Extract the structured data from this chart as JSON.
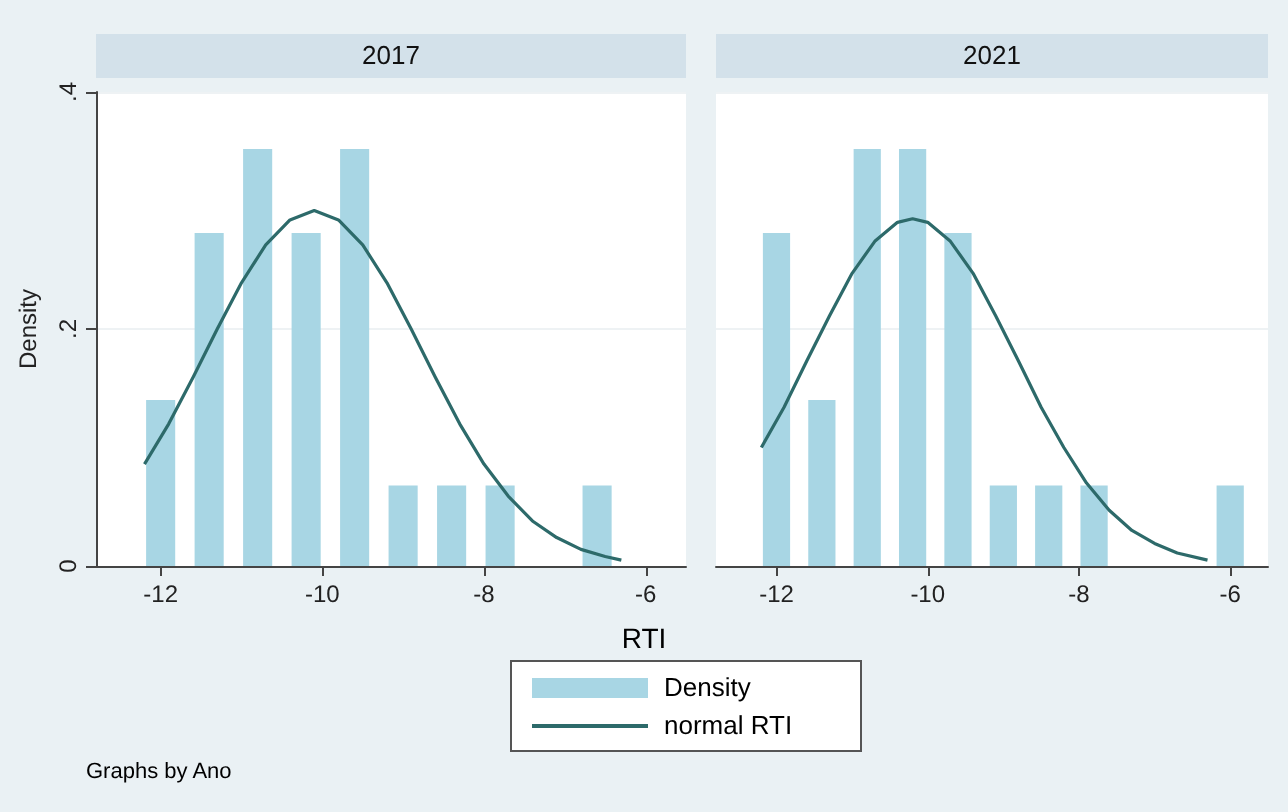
{
  "chart_data": [
    {
      "type": "histogram",
      "title": "2017",
      "xlabel": "RTI",
      "ylabel": "Density",
      "legend": "bottom",
      "grid": "y",
      "annotations": [
        "Graphs by Ano"
      ],
      "bins": [
        -12.3,
        -11.7,
        -11.1,
        -10.5,
        -9.9,
        -9.3,
        -8.7,
        -8.1,
        -7.5,
        -6.9,
        -6.3
      ],
      "xlim": [
        -12.8,
        -5.5
      ],
      "xticks": [
        -12,
        -10,
        -8,
        -6
      ],
      "ylim": [
        0,
        0.4
      ],
      "yticks": [
        0,
        {
          "value": 0.2,
          "label": ".2"
        },
        {
          "value": 0.4,
          "label": ".4"
        }
      ],
      "series": [
        {
          "name": "Density",
          "color": "#a8d6e4",
          "values": [
            0.14,
            0.281,
            0.352,
            0.281,
            0.352,
            0.068,
            0.068,
            0.068,
            0,
            0.068
          ]
        },
        {
          "type": "line",
          "name": "normal RTI",
          "color": "#2d6a6a",
          "x": [
            -12.2,
            -11.9,
            -11.6,
            -11.3,
            -11.0,
            -10.7,
            -10.4,
            -10.1,
            -9.8,
            -9.5,
            -9.2,
            -8.9,
            -8.6,
            -8.3,
            -8.0,
            -7.7,
            -7.4,
            -7.1,
            -6.8,
            -6.5,
            -6.3
          ],
          "values": [
            0.086,
            0.12,
            0.159,
            0.2,
            0.239,
            0.271,
            0.292,
            0.3,
            0.292,
            0.271,
            0.239,
            0.2,
            0.159,
            0.12,
            0.086,
            0.059,
            0.038,
            0.024,
            0.014,
            0.008,
            0.005
          ]
        }
      ]
    },
    {
      "type": "histogram",
      "title": "2021",
      "grid": "y",
      "tick_labels": "x",
      "bins": [
        -12.3,
        -11.7,
        -11.1,
        -10.5,
        -9.9,
        -9.3,
        -8.7,
        -8.1,
        -7.5,
        -6.9,
        -6.3,
        -5.7
      ],
      "xlim": [
        -12.8,
        -5.5
      ],
      "xticks": [
        -12,
        -10,
        -8,
        -6
      ],
      "ylim": [
        0,
        0.4
      ],
      "yticks": [
        {
          "value": 0,
          "label": null
        },
        {
          "value": 0.2,
          "label": null
        },
        {
          "value": 0.4,
          "label": null
        }
      ],
      "series": [
        {
          "color": "#a8d6e4",
          "values": [
            0.281,
            0.14,
            0.352,
            0.352,
            0.281,
            0.068,
            0.068,
            0.068,
            0,
            0,
            0.068
          ]
        },
        {
          "type": "line",
          "color": "#2d6a6a",
          "x": [
            -12.2,
            -11.9,
            -11.6,
            -11.3,
            -11.0,
            -10.7,
            -10.4,
            -10.2,
            -10.0,
            -9.7,
            -9.4,
            -9.1,
            -8.8,
            -8.5,
            -8.2,
            -7.9,
            -7.6,
            -7.3,
            -7.0,
            -6.7,
            -6.3
          ],
          "values": [
            0.1,
            0.134,
            0.173,
            0.211,
            0.247,
            0.274,
            0.29,
            0.293,
            0.29,
            0.274,
            0.247,
            0.211,
            0.173,
            0.134,
            0.1,
            0.07,
            0.047,
            0.03,
            0.019,
            0.011,
            0.005
          ]
        }
      ]
    }
  ]
}
